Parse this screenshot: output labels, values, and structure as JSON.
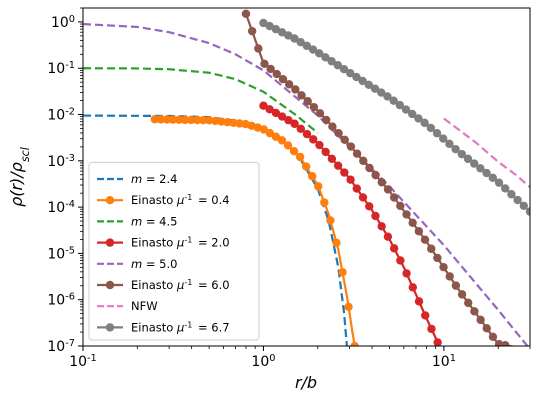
{
  "chart_data": {
    "type": "line",
    "xlabel": "r/b",
    "ylabel": "ρ(r)/ρ_scl",
    "xscale": "log",
    "yscale": "log",
    "xlim": [
      0.1,
      30
    ],
    "ylim": [
      1e-07,
      2
    ],
    "x_ticks": [
      0.1,
      1,
      10
    ],
    "x_tick_labels": [
      "10^-1",
      "10^0",
      "10^1"
    ],
    "y_ticks": [
      1e-07,
      1e-06,
      1e-05,
      0.0001,
      0.001,
      0.01,
      0.1,
      1
    ],
    "y_tick_labels": [
      "10^-7",
      "10^-6",
      "10^-5",
      "10^-4",
      "10^-3",
      "10^-2",
      "10^-1",
      "10^0"
    ],
    "legend_position": "lower-left",
    "series": [
      {
        "name": "m = 2.4",
        "style": "dashed",
        "color": "#1f77b4",
        "x": [
          0.1,
          0.3,
          0.5,
          0.8,
          1.0,
          1.3,
          1.6,
          2.0,
          2.3,
          2.6,
          2.8,
          2.9
        ],
        "y": [
          0.0095,
          0.0093,
          0.0088,
          0.0068,
          0.005,
          0.0025,
          0.0011,
          0.00025,
          5e-05,
          5e-06,
          5e-07,
          1e-07
        ]
      },
      {
        "name": "Einasto μ^-1 = 0.4",
        "style": "solid-marker",
        "color": "#ff7f0e",
        "x": [
          0.25,
          0.5,
          0.8,
          1.0,
          1.3,
          1.6,
          2.0,
          2.3,
          2.6,
          2.9,
          3.2
        ],
        "y": [
          0.0079,
          0.0075,
          0.0062,
          0.0048,
          0.0026,
          0.0012,
          0.0003,
          7e-05,
          1.2e-05,
          1.2e-06,
          1e-07
        ]
      },
      {
        "name": "m = 4.5",
        "style": "dashed",
        "color": "#2ca02c",
        "x": [
          0.1,
          0.2,
          0.3,
          0.5,
          0.7,
          1.0,
          1.5,
          2.0
        ],
        "y": [
          0.1,
          0.099,
          0.095,
          0.08,
          0.058,
          0.031,
          0.01,
          0.004
        ]
      },
      {
        "name": "Einasto μ^-1 = 2.0",
        "style": "solid-marker",
        "color": "#d62728",
        "x": [
          1.0,
          1.5,
          2.0,
          3.0,
          4.0,
          5.0,
          6.0,
          7.0,
          8.0,
          9.0,
          10.0
        ],
        "y": [
          0.0155,
          0.0062,
          0.0024,
          0.00042,
          8.5e-05,
          2e-05,
          5e-06,
          1.3e-06,
          4e-07,
          1.5e-07,
          6e-08
        ]
      },
      {
        "name": "m = 5.0",
        "style": "dashed",
        "color": "#9467bd",
        "x": [
          0.1,
          0.2,
          0.3,
          0.5,
          0.7,
          1.0,
          2.0,
          5.0,
          10.0,
          20.0,
          30.0
        ],
        "y": [
          0.9,
          0.78,
          0.6,
          0.35,
          0.2,
          0.09,
          0.0095,
          0.00028,
          1.5e-05,
          6e-07,
          8.5e-08
        ]
      },
      {
        "name": "Einasto μ^-1 = 6.0",
        "style": "solid-marker",
        "color": "#8c564b",
        "x": [
          0.8,
          1.0,
          1.5,
          2.0,
          3.0,
          5.0,
          8.0,
          12.0,
          20.0,
          30.0
        ],
        "y": [
          1.5,
          0.13,
          0.035,
          0.012,
          0.0022,
          0.00022,
          1.8e-05,
          1.7e-06,
          1.1e-07,
          8.5e-08
        ]
      },
      {
        "name": "NFW",
        "style": "dashed",
        "color": "#e377c2",
        "x": [
          10.0,
          15.0,
          20.0,
          25.0,
          30.0
        ],
        "y": [
          0.0082,
          0.0025,
          0.00095,
          0.0005,
          0.00027
        ]
      },
      {
        "name": "Einasto μ^-1 = 6.7",
        "style": "solid-marker",
        "color": "#7f7f7f",
        "x": [
          1.0,
          1.5,
          2.0,
          3.0,
          5.0,
          8.0,
          12.0,
          20.0,
          30.0
        ],
        "y": [
          0.95,
          0.43,
          0.22,
          0.08,
          0.023,
          0.0062,
          0.0016,
          0.00035,
          8e-05
        ]
      }
    ]
  }
}
